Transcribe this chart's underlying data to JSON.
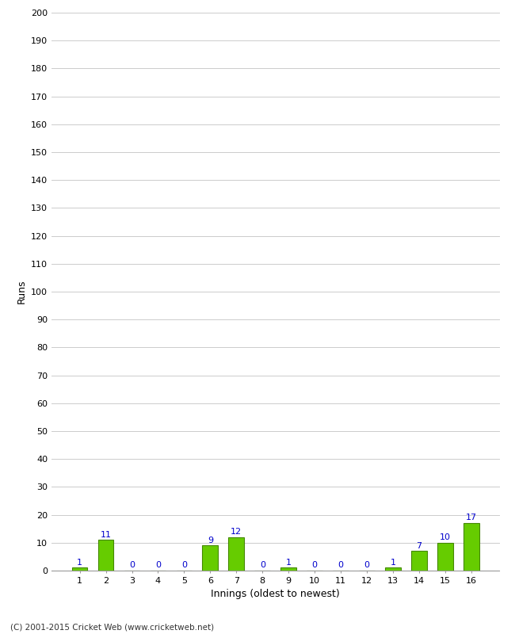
{
  "xlabel": "Innings (oldest to newest)",
  "ylabel": "Runs",
  "innings": [
    1,
    2,
    3,
    4,
    5,
    6,
    7,
    8,
    9,
    10,
    11,
    12,
    13,
    14,
    15,
    16
  ],
  "values": [
    1,
    11,
    0,
    0,
    0,
    9,
    12,
    0,
    1,
    0,
    0,
    0,
    1,
    7,
    10,
    17
  ],
  "bar_color": "#66cc00",
  "bar_edge_color": "#448800",
  "value_color": "#0000cc",
  "ylim": [
    0,
    200
  ],
  "yticks": [
    0,
    10,
    20,
    30,
    40,
    50,
    60,
    70,
    80,
    90,
    100,
    110,
    120,
    130,
    140,
    150,
    160,
    170,
    180,
    190,
    200
  ],
  "background_color": "#ffffff",
  "grid_color": "#cccccc",
  "footer": "(C) 2001-2015 Cricket Web (www.cricketweb.net)"
}
